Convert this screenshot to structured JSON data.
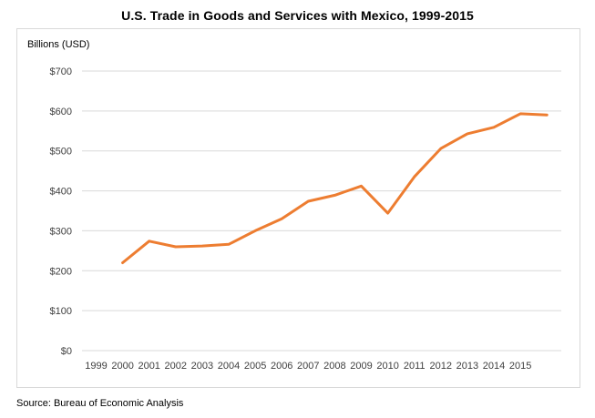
{
  "title": "U.S. Trade in Goods and Services with Mexico, 1999-2015",
  "source": "Source: Bureau of Economic Analysis",
  "chart_data": {
    "type": "line",
    "title": "U.S. Trade in Goods and Services with Mexico, 1999-2015",
    "ylabel": "Billions (USD)",
    "xlabel": "",
    "categories": [
      "1999",
      "2000",
      "2001",
      "2002",
      "2003",
      "2004",
      "2005",
      "2006",
      "2007",
      "2008",
      "2009",
      "2010",
      "2011",
      "2012",
      "2013",
      "2014",
      "2015"
    ],
    "series": [
      {
        "values": [
          220,
          274,
          260,
          262,
          266,
          300,
          330,
          374,
          389,
          412,
          344,
          435,
          506,
          543,
          559,
          593,
          590
        ],
        "color": "#ED7D31"
      }
    ],
    "ylim": [
      0,
      700
    ],
    "yticks": [
      0,
      100,
      200,
      300,
      400,
      500,
      600,
      700
    ],
    "ytick_labels": [
      "$0",
      "$100",
      "$200",
      "$300",
      "$400",
      "$500",
      "$600",
      "$700"
    ],
    "grid": true,
    "legend": "none",
    "gridline_color": "#d9d9d9"
  }
}
